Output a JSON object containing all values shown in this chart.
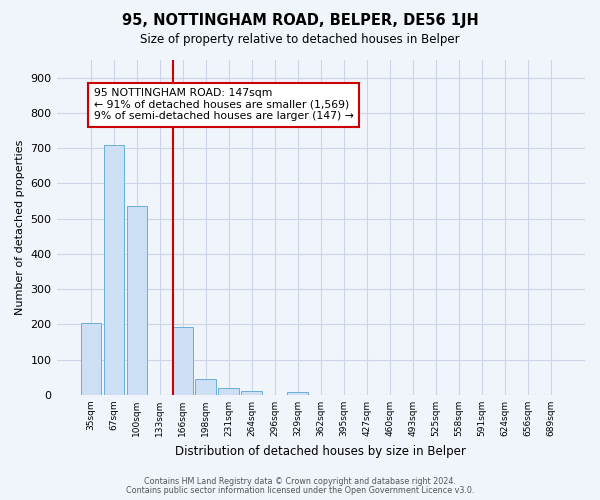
{
  "title": "95, NOTTINGHAM ROAD, BELPER, DE56 1JH",
  "subtitle": "Size of property relative to detached houses in Belper",
  "xlabel": "Distribution of detached houses by size in Belper",
  "ylabel": "Number of detached properties",
  "bar_labels": [
    "35sqm",
    "67sqm",
    "100sqm",
    "133sqm",
    "166sqm",
    "198sqm",
    "231sqm",
    "264sqm",
    "296sqm",
    "329sqm",
    "362sqm",
    "395sqm",
    "427sqm",
    "460sqm",
    "493sqm",
    "525sqm",
    "558sqm",
    "591sqm",
    "624sqm",
    "656sqm",
    "689sqm"
  ],
  "bar_values": [
    203,
    710,
    537,
    0,
    193,
    46,
    21,
    12,
    0,
    9,
    0,
    0,
    0,
    0,
    0,
    0,
    0,
    0,
    0,
    0,
    0
  ],
  "bar_color": "#ccdff5",
  "bar_edgecolor": "#6aaed6",
  "vline_color": "#cc0000",
  "annotation_line1": "95 NOTTINGHAM ROAD: 147sqm",
  "annotation_line2": "← 91% of detached houses are smaller (1,569)",
  "annotation_line3": "9% of semi-detached houses are larger (147) →",
  "annotation_box_color": "#ffffff",
  "annotation_box_edgecolor": "#cc0000",
  "ylim": [
    0,
    950
  ],
  "yticks": [
    0,
    100,
    200,
    300,
    400,
    500,
    600,
    700,
    800,
    900
  ],
  "grid_color": "#ccd5e8",
  "footer1": "Contains HM Land Registry data © Crown copyright and database right 2024.",
  "footer2": "Contains public sector information licensed under the Open Government Licence v3.0.",
  "background_color": "#f0f4fb",
  "plot_background_color": "#f0f4fb"
}
